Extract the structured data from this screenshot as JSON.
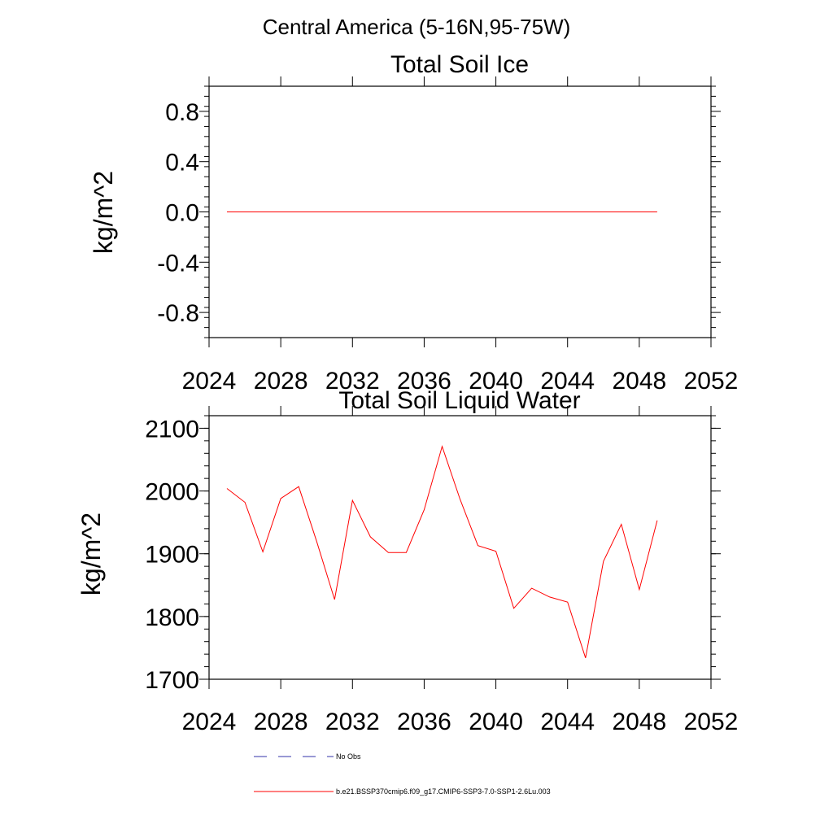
{
  "figure": {
    "title": "Central America (5-16N,95-75W)"
  },
  "chart_data": [
    {
      "type": "line",
      "title": "Total Soil Ice",
      "xlabel": "",
      "ylabel": "kg/m^2",
      "xlim": [
        2024,
        2052
      ],
      "ylim": [
        -1.0,
        1.0
      ],
      "x_ticks": [
        2024,
        2028,
        2032,
        2036,
        2040,
        2044,
        2048,
        2052
      ],
      "y_ticks": [
        "0.8",
        "0.4",
        "0.0",
        "-0.4",
        "-0.8"
      ],
      "y_tick_values": [
        0.8,
        0.4,
        0.0,
        -0.4,
        -0.8
      ],
      "grid": false,
      "series": [
        {
          "color": "#ff0000",
          "x": [
            2025,
            2026,
            2027,
            2028,
            2029,
            2030,
            2031,
            2032,
            2033,
            2034,
            2035,
            2036,
            2037,
            2038,
            2039,
            2040,
            2041,
            2042,
            2043,
            2044,
            2045,
            2046,
            2047,
            2048,
            2049
          ],
          "values": [
            0,
            0,
            0,
            0,
            0,
            0,
            0,
            0,
            0,
            0,
            0,
            0,
            0,
            0,
            0,
            0,
            0,
            0,
            0,
            0,
            0,
            0,
            0,
            0,
            0
          ]
        }
      ]
    },
    {
      "type": "line",
      "title": "Total Soil Liquid Water",
      "xlabel": "",
      "ylabel": "kg/m^2",
      "xlim": [
        2024,
        2052
      ],
      "ylim": [
        1700,
        2120
      ],
      "x_ticks": [
        2024,
        2028,
        2032,
        2036,
        2040,
        2044,
        2048,
        2052
      ],
      "y_ticks": [
        "2100",
        "2000",
        "1900",
        "1800",
        "1700"
      ],
      "y_tick_values": [
        2100,
        2000,
        1900,
        1800,
        1700
      ],
      "grid": false,
      "series": [
        {
          "color": "#ff0000",
          "x": [
            2025,
            2026,
            2027,
            2028,
            2029,
            2030,
            2031,
            2032,
            2033,
            2034,
            2035,
            2036,
            2037,
            2038,
            2039,
            2040,
            2041,
            2042,
            2043,
            2044,
            2045,
            2046,
            2047,
            2048,
            2049
          ],
          "values": [
            2004,
            1982,
            1903,
            1988,
            2007,
            1920,
            1827,
            1985,
            1927,
            1902,
            1902,
            1970,
            2071,
            1987,
            1913,
            1904,
            1813,
            1845,
            1831,
            1823,
            1734,
            1888,
            1947,
            1843,
            1953
          ]
        }
      ]
    }
  ],
  "legend": {
    "placement": "bottom",
    "items": [
      {
        "label": "No Obs",
        "color": "#0000aa",
        "style": "dashed"
      },
      {
        "label": "b.e21.BSSP370cmip6.f09_g17.CMIP6-SSP3-7.0-SSP1-2.6Lu.003",
        "color": "#ff0000",
        "style": "solid"
      }
    ]
  }
}
